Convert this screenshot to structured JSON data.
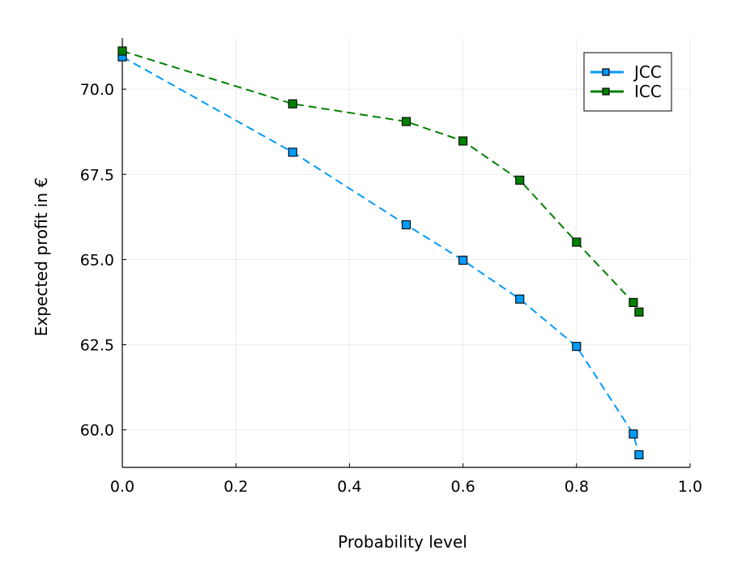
{
  "chart_data": {
    "type": "line",
    "xlabel": "Probability level",
    "ylabel": "Expected profit in €",
    "xlim": [
      0.0,
      1.0
    ],
    "ylim": [
      58.9,
      71.5
    ],
    "x_ticks": [
      "0.0",
      "0.2",
      "0.4",
      "0.6",
      "0.8",
      "1.0"
    ],
    "y_ticks": [
      "60.0",
      "62.5",
      "65.0",
      "67.5",
      "70.0"
    ],
    "grid": true,
    "legend_position": "top-right",
    "series": [
      {
        "name": "JCC",
        "color": "#009af9",
        "line_style": "dashed",
        "marker": "square",
        "x": [
          0.0,
          0.3,
          0.5,
          0.6,
          0.7,
          0.8,
          0.9,
          0.91
        ],
        "y": [
          70.95,
          68.15,
          66.02,
          64.98,
          63.84,
          62.45,
          59.88,
          59.27
        ]
      },
      {
        "name": "ICC",
        "color": "#008000",
        "line_style": "dashed",
        "marker": "square",
        "x": [
          0.0,
          0.3,
          0.5,
          0.6,
          0.7,
          0.8,
          0.9,
          0.91
        ],
        "y": [
          71.12,
          69.57,
          69.05,
          68.48,
          67.33,
          65.51,
          63.74,
          63.46
        ]
      }
    ]
  }
}
